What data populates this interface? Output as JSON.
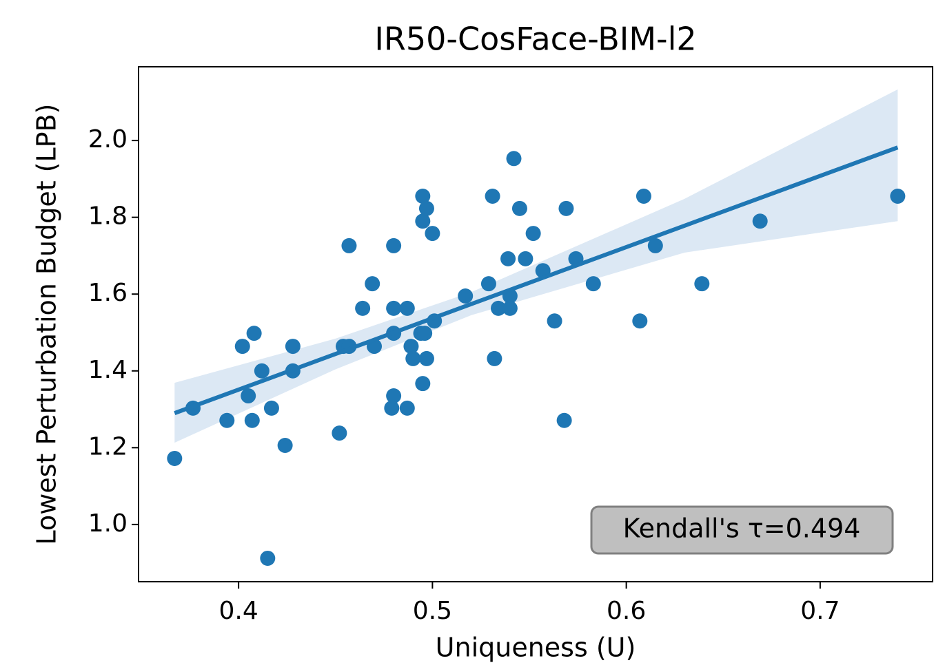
{
  "chart_data": {
    "type": "scatter",
    "title": "IR50-CosFace-BIM-l2",
    "xlabel": "Uniqueness (U)",
    "ylabel": "Lowest Perturbation Budget (LPB)",
    "annotation": "Kendall's τ=0.494",
    "xlim": [
      0.3484,
      0.758
    ],
    "ylim": [
      0.851,
      2.192
    ],
    "xticks": [
      0.4,
      0.5,
      0.6,
      0.7
    ],
    "yticks": [
      {
        "value": 1.0,
        "label": "1.0"
      },
      1.2,
      1.4,
      1.6,
      1.8,
      {
        "value": 2.0,
        "label": "2.0"
      }
    ],
    "series": [
      {
        "color": "#1f77b4",
        "x": [
          0.367,
          0.3765,
          0.394,
          0.402,
          0.405,
          0.407,
          0.408,
          0.412,
          0.417,
          0.415,
          0.424,
          0.428,
          0.428,
          0.452,
          0.454,
          0.457,
          0.457,
          0.464,
          0.469,
          0.47,
          0.48,
          0.48,
          0.48,
          0.48,
          0.479,
          0.487,
          0.487,
          0.489,
          0.49,
          0.494,
          0.495,
          0.495,
          0.495,
          0.497,
          0.496,
          0.497,
          0.5,
          0.501,
          0.517,
          0.529,
          0.531,
          0.532,
          0.534,
          0.539,
          0.54,
          0.54,
          0.542,
          0.545,
          0.548,
          0.552,
          0.557,
          0.563,
          0.568,
          0.569,
          0.574,
          0.583,
          0.607,
          0.609,
          0.615,
          0.639,
          0.669,
          0.74
        ],
        "values": [
          1.172,
          1.303,
          1.271,
          1.464,
          1.335,
          1.271,
          1.498,
          1.4,
          1.303,
          0.912,
          1.206,
          1.464,
          1.4,
          1.238,
          1.464,
          1.464,
          1.726,
          1.563,
          1.627,
          1.464,
          1.726,
          1.563,
          1.498,
          1.335,
          1.303,
          1.563,
          1.303,
          1.464,
          1.432,
          1.498,
          1.367,
          1.855,
          1.79,
          1.823,
          1.498,
          1.432,
          1.758,
          1.53,
          1.595,
          1.627,
          1.855,
          1.432,
          1.563,
          1.692,
          1.595,
          1.563,
          1.953,
          1.823,
          1.692,
          1.758,
          1.661,
          1.53,
          1.271,
          1.823,
          1.692,
          1.627,
          1.53,
          1.855,
          1.726,
          1.627,
          1.79,
          1.855
        ]
      }
    ],
    "fit": {
      "color": "#1f77b4",
      "band_color": "#dce8f4",
      "x": [
        0.367,
        0.45,
        0.52,
        0.63,
        0.74
      ],
      "values": [
        1.29,
        1.444,
        1.574,
        1.778,
        1.982
      ],
      "lower": [
        1.213,
        1.404,
        1.545,
        1.708,
        1.79
      ],
      "upper": [
        1.369,
        1.484,
        1.605,
        1.848,
        2.133
      ]
    }
  }
}
